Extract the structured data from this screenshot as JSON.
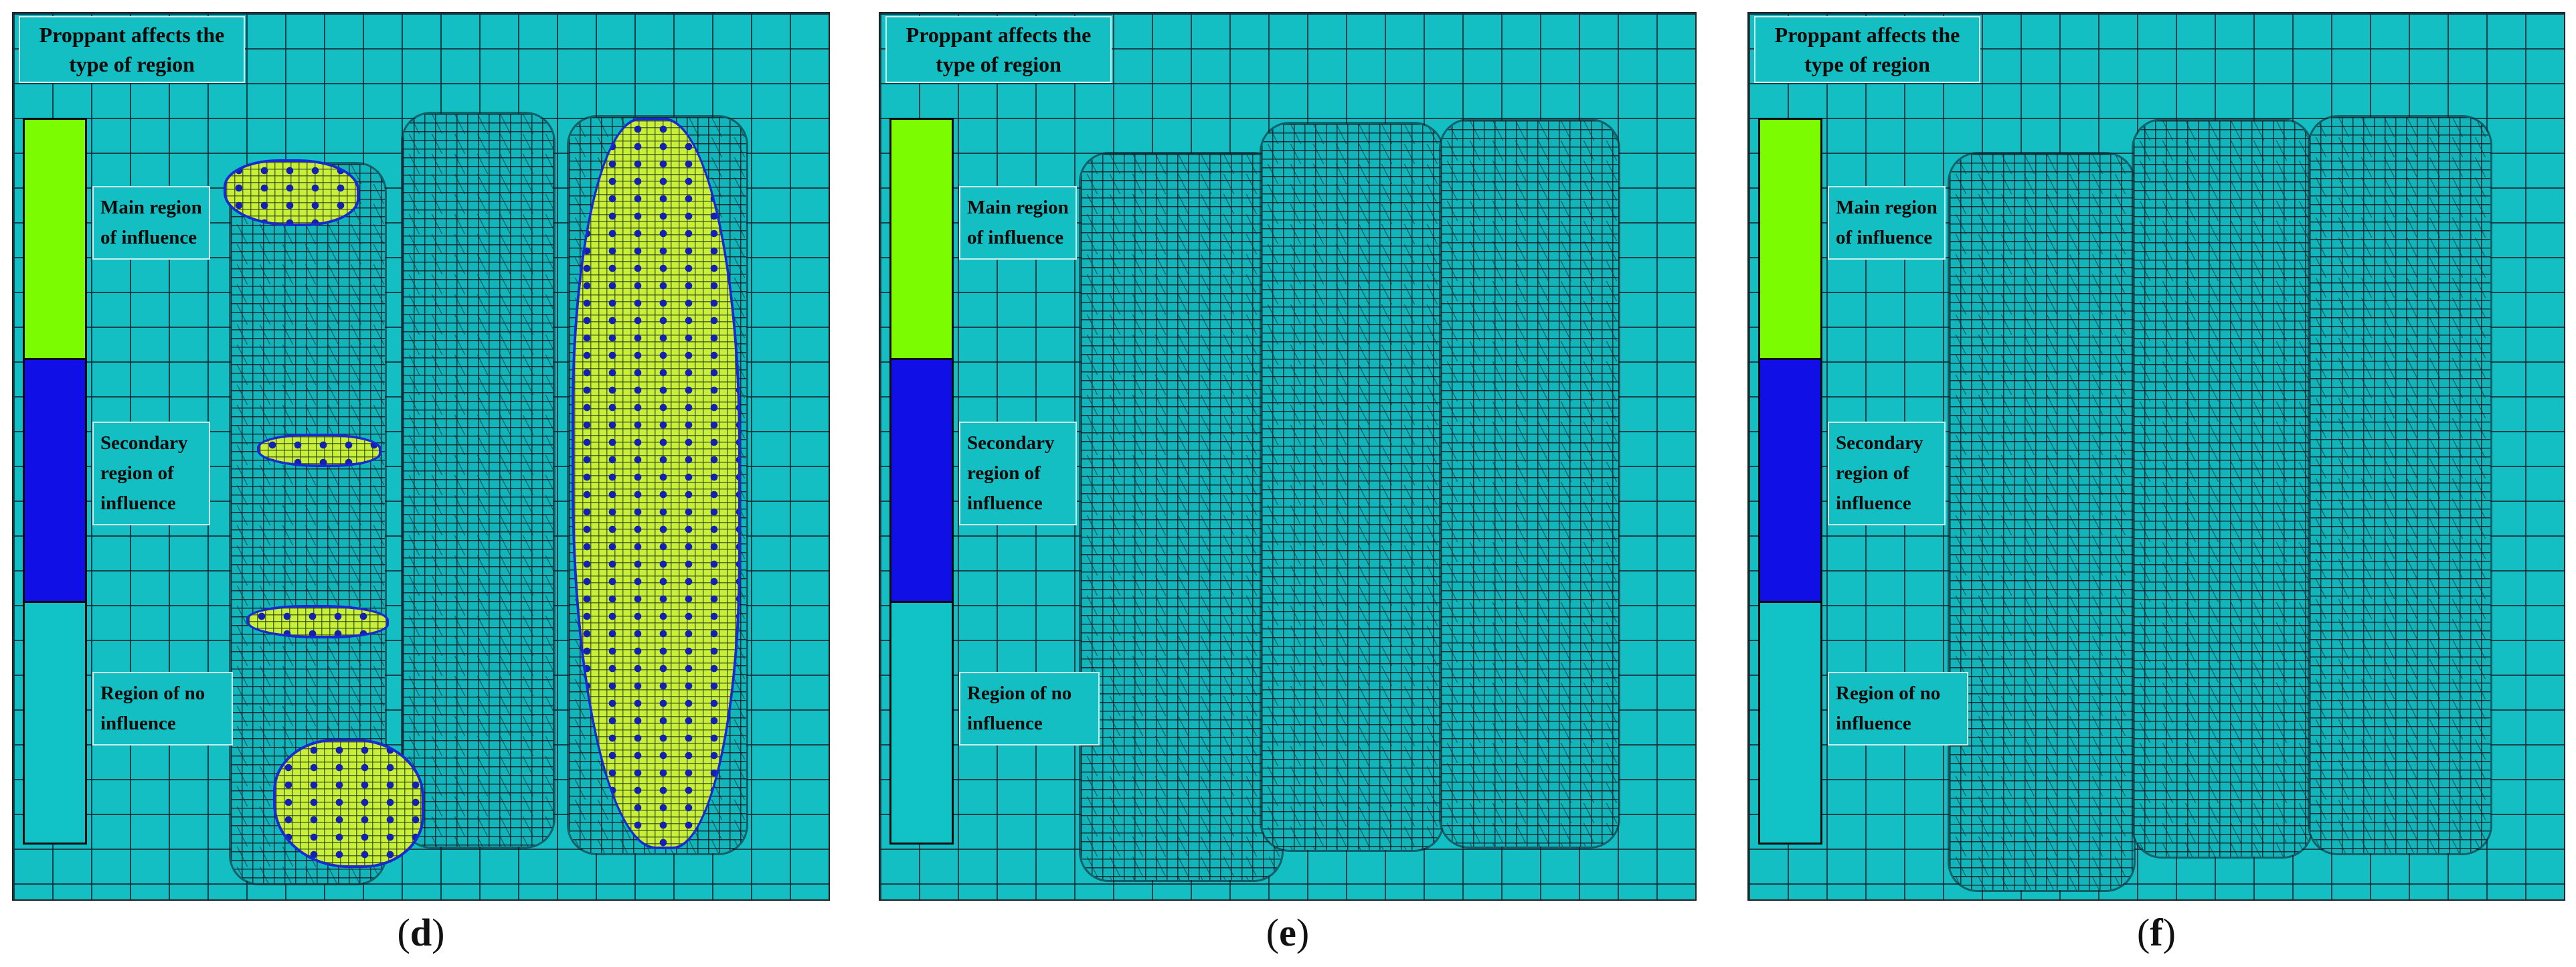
{
  "panels": [
    {
      "id": "d",
      "title": "Proppant affects the type of region",
      "legend": {
        "main": "Main region of influence",
        "secondary": "Secondary region of influence",
        "none": "Region of no influence"
      },
      "caption_open": "(",
      "caption_letter": "d",
      "caption_close": ")"
    },
    {
      "id": "e",
      "title": "Proppant affects the type of region",
      "legend": {
        "main": "Main region of influence",
        "secondary": "Secondary region of influence",
        "none": "Region of no influence"
      },
      "caption_open": "(",
      "caption_letter": "e",
      "caption_close": ")"
    },
    {
      "id": "f",
      "title": "Proppant affects the type of region",
      "legend": {
        "main": "Main region of influence",
        "secondary": "Secondary region of influence",
        "none": "Region of no influence"
      },
      "caption_open": "(",
      "caption_letter": "f",
      "caption_close": ")"
    }
  ],
  "colors": {
    "background_mesh": "#13bfc3",
    "main_region": "#7cfc00",
    "secondary_region": "#1010e6",
    "no_influence": "#11c3c7",
    "proppant_particles": "#c8ef3a"
  }
}
